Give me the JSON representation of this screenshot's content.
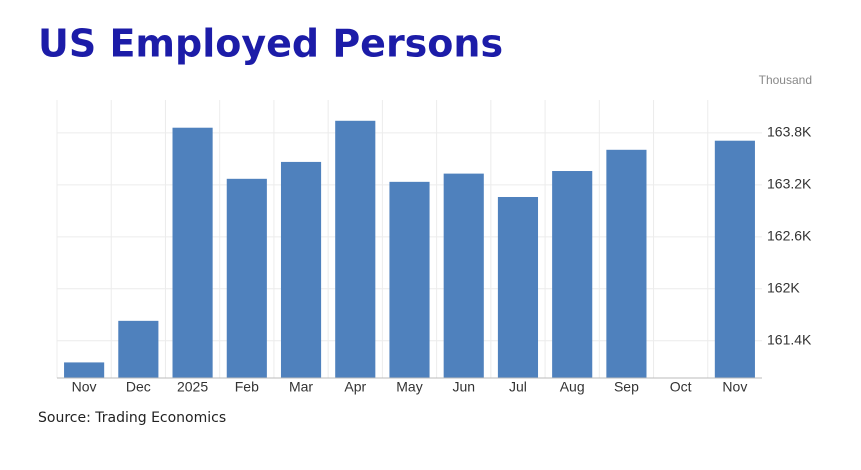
{
  "chart_data": {
    "type": "bar",
    "title": "US Employed Persons",
    "unit": "Thousand",
    "source": "Source: Trading Economics",
    "categories": [
      "Nov",
      "Dec",
      "2025",
      "Feb",
      "Mar",
      "Apr",
      "May",
      "Jun",
      "Jul",
      "Aug",
      "Sep",
      "Oct",
      "Nov"
    ],
    "values": [
      161150,
      161630,
      163860,
      163270,
      163465,
      163940,
      163235,
      163330,
      163060,
      163360,
      163605,
      null,
      163710
    ],
    "color": "#4f81bd",
    "ylim": [
      160970,
      164180
    ],
    "yticks": [
      {
        "value": 161400,
        "label": "161.4K"
      },
      {
        "value": 162000,
        "label": "162K"
      },
      {
        "value": 162600,
        "label": "162.6K"
      },
      {
        "value": 163200,
        "label": "163.2K"
      },
      {
        "value": 163800,
        "label": "163.8K"
      }
    ],
    "grid": true
  }
}
